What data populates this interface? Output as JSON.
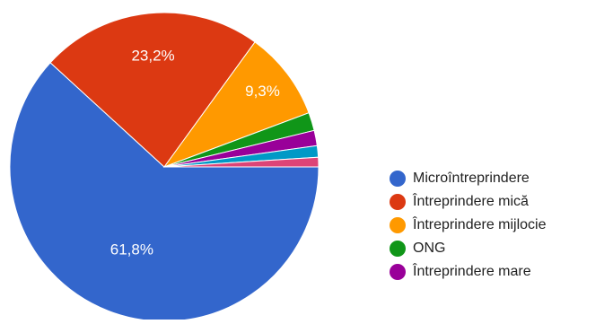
{
  "chart_data": {
    "type": "pie",
    "slices": [
      {
        "label": "Microîntreprindere",
        "value": 61.8,
        "value_label": "61,8%",
        "color": "#3366cc"
      },
      {
        "label": "Întreprindere mică",
        "value": 23.2,
        "value_label": "23,2%",
        "color": "#dc3912"
      },
      {
        "label": "Întreprindere mijlocie",
        "value": 9.3,
        "value_label": "9,3%",
        "color": "#ff9900"
      },
      {
        "label": "ONG",
        "value": 1.9,
        "value_label": "",
        "color": "#109618"
      },
      {
        "label": "Întreprindere mare",
        "value": 1.6,
        "value_label": "",
        "color": "#990099"
      },
      {
        "label": "",
        "value": 1.2,
        "value_label": "",
        "color": "#0099c6"
      },
      {
        "label": "",
        "value": 1.0,
        "value_label": "",
        "color": "#dd4477"
      }
    ],
    "legend_position": "right"
  }
}
